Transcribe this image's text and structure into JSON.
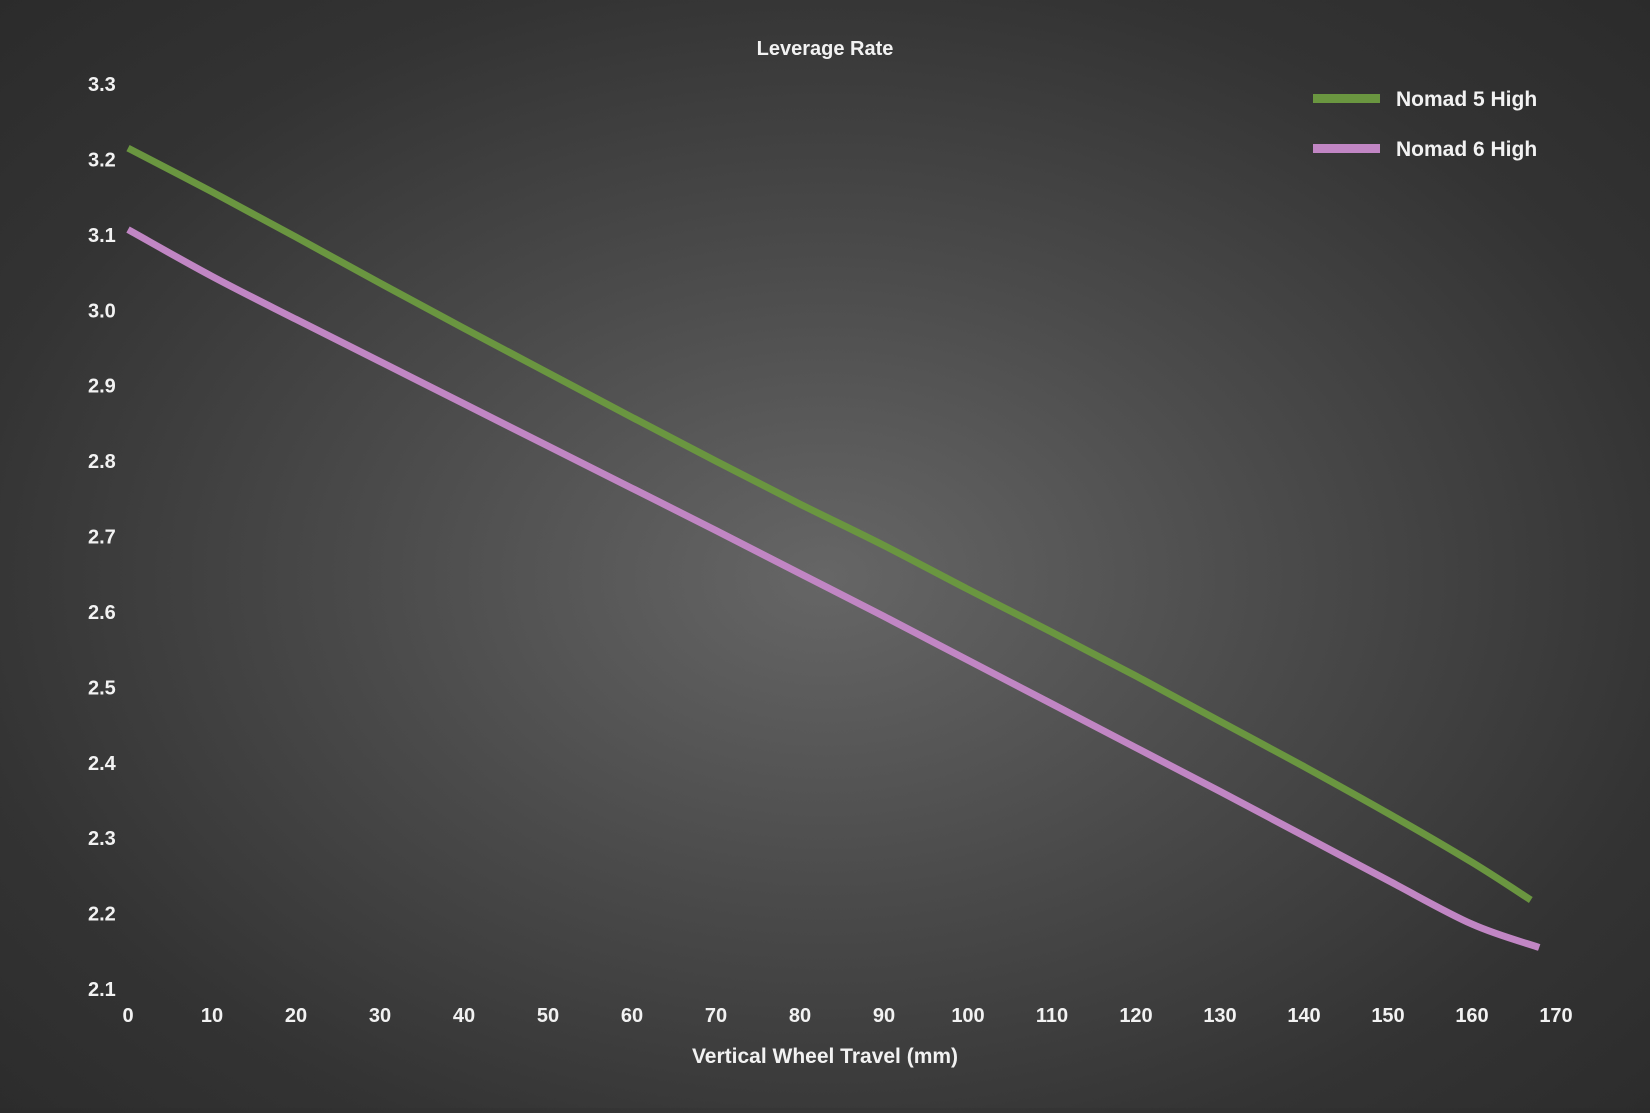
{
  "chart_data": {
    "type": "line",
    "title": "Leverage Rate",
    "xlabel": "Vertical Wheel Travel (mm)",
    "ylabel": "",
    "xlim": [
      0,
      170
    ],
    "ylim": [
      2.1,
      3.3
    ],
    "xticks": [
      "0",
      "10",
      "20",
      "30",
      "40",
      "50",
      "60",
      "70",
      "80",
      "90",
      "100",
      "110",
      "120",
      "130",
      "140",
      "150",
      "160",
      "170"
    ],
    "yticks": [
      "3.3",
      "3.2",
      "3.1",
      "3.0",
      "2.9",
      "2.8",
      "2.7",
      "2.6",
      "2.5",
      "2.4",
      "2.3",
      "2.2",
      "2.1"
    ],
    "grid": false,
    "legend_position": "top-right",
    "series": [
      {
        "name": "Nomad 5 High",
        "color": "#6a9640",
        "x": [
          0,
          10,
          20,
          30,
          40,
          50,
          60,
          70,
          80,
          90,
          100,
          110,
          120,
          130,
          140,
          150,
          160,
          167
        ],
        "y": [
          3.215,
          3.157,
          3.097,
          3.036,
          2.976,
          2.917,
          2.858,
          2.8,
          2.743,
          2.688,
          2.63,
          2.573,
          2.515,
          2.455,
          2.395,
          2.333,
          2.268,
          2.218
        ]
      },
      {
        "name": "Nomad 6 High",
        "color": "#c186c4",
        "x": [
          0,
          10,
          20,
          30,
          40,
          50,
          60,
          70,
          80,
          90,
          100,
          110,
          120,
          130,
          140,
          150,
          160,
          168
        ],
        "y": [
          3.107,
          3.045,
          2.988,
          2.932,
          2.876,
          2.82,
          2.764,
          2.708,
          2.651,
          2.594,
          2.536,
          2.478,
          2.42,
          2.362,
          2.303,
          2.244,
          2.186,
          2.155
        ]
      }
    ]
  }
}
